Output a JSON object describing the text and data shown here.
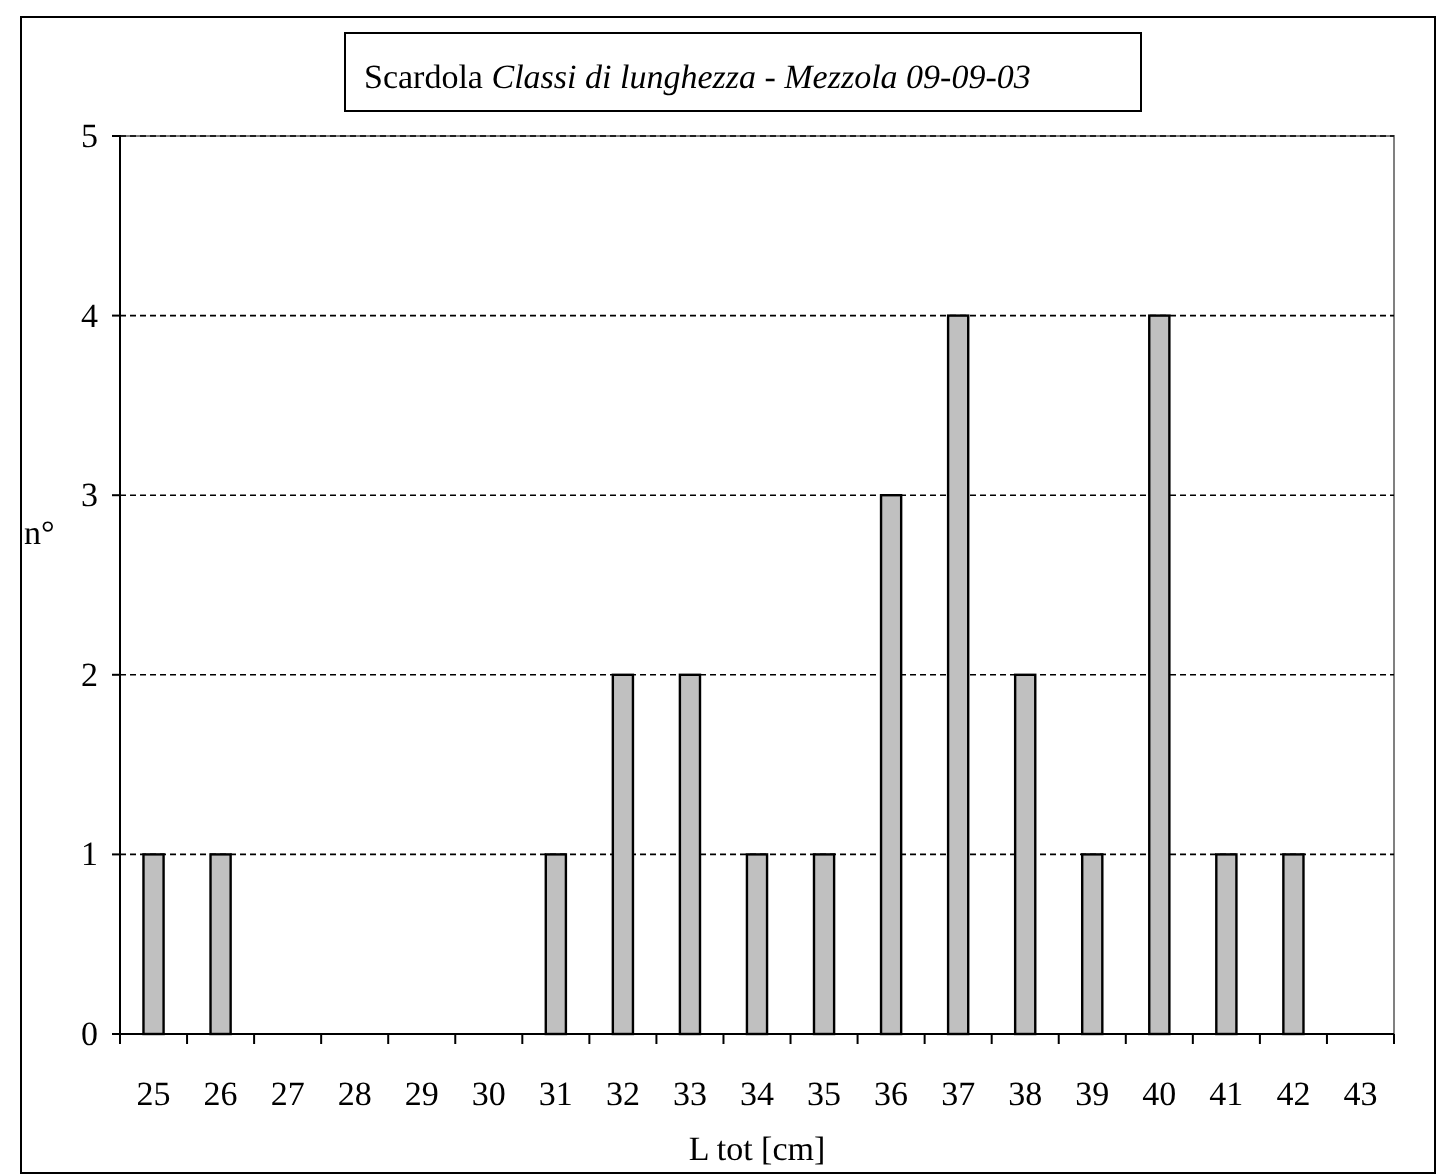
{
  "chart_data": {
    "type": "bar",
    "title": "Scardola Classi di lunghezza - Mezzola  09-09-03",
    "xlabel": "L tot  [cm]",
    "ylabel": "n°",
    "categories": [
      "25",
      "26",
      "27",
      "28",
      "29",
      "30",
      "31",
      "32",
      "33",
      "34",
      "35",
      "36",
      "37",
      "38",
      "39",
      "40",
      "41",
      "42",
      "43"
    ],
    "values": [
      1,
      1,
      0,
      0,
      0,
      0,
      1,
      2,
      2,
      1,
      1,
      3,
      4,
      2,
      1,
      4,
      1,
      1,
      0
    ],
    "color": "#c0c0c0",
    "ylim": [
      0,
      5
    ],
    "yticks": [
      0,
      1,
      2,
      3,
      4,
      5
    ],
    "grid": "y"
  }
}
